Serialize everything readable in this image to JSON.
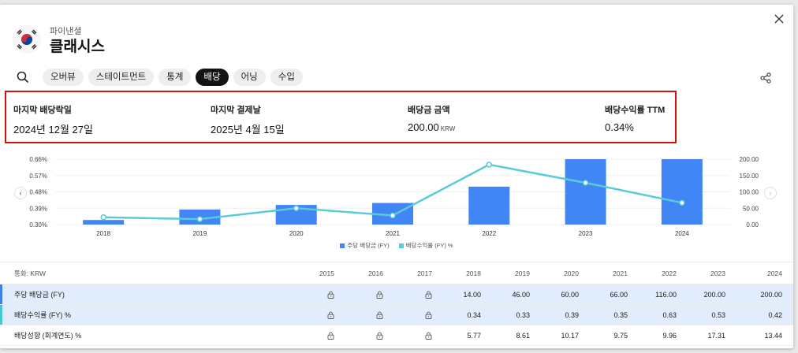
{
  "header": {
    "subtitle": "파이낸셜",
    "title": "클래시스"
  },
  "tabs": [
    "오버뷰",
    "스테이트먼트",
    "통계",
    "배당",
    "어닝",
    "수입"
  ],
  "active_tab": "배당",
  "stats": [
    {
      "label": "마지막 배당락일",
      "value": "2024년 12월 27일",
      "unit": ""
    },
    {
      "label": "마지막 결제날",
      "value": "2025년 4월 15일",
      "unit": ""
    },
    {
      "label": "배당금 금액",
      "value": "200.00",
      "unit": "KRW"
    },
    {
      "label": "배당수익률 TTM",
      "value": "0.34%",
      "unit": ""
    }
  ],
  "chart_data": {
    "type": "bar",
    "categories": [
      "2018",
      "2019",
      "2020",
      "2021",
      "2022",
      "2023",
      "2024"
    ],
    "series": [
      {
        "name": "주당 배당금 (FY)",
        "type": "bar",
        "axis": "right",
        "values": [
          14.0,
          46.0,
          60.0,
          66.0,
          116.0,
          200.0,
          200.0
        ],
        "color": "#4285f4"
      },
      {
        "name": "배당수익률 (FY) %",
        "type": "line",
        "axis": "left",
        "values": [
          0.34,
          0.33,
          0.39,
          0.35,
          0.63,
          0.53,
          0.42
        ],
        "color": "#5bcad8"
      }
    ],
    "left_axis": {
      "ticks": [
        "0.66%",
        "0.57%",
        "0.48%",
        "0.39%",
        "0.30%"
      ],
      "range": [
        0.3,
        0.66
      ]
    },
    "right_axis": {
      "ticks": [
        "200.00",
        "150.00",
        "100.00",
        "50.00",
        "0.00"
      ],
      "range": [
        0,
        200
      ]
    },
    "grid": true,
    "legend": "bottom"
  },
  "table": {
    "currency_label": "통화: KRW",
    "years": [
      "2015",
      "2016",
      "2017",
      "2018",
      "2019",
      "2020",
      "2021",
      "2022",
      "2023",
      "2024"
    ],
    "rows": [
      {
        "label": "주당 배당금 (FY)",
        "values": [
          "",
          "",
          "",
          "14.00",
          "46.00",
          "60.00",
          "66.00",
          "116.00",
          "200.00",
          "200.00"
        ]
      },
      {
        "label": "배당수익률 (FY) %",
        "values": [
          "",
          "",
          "",
          "0.34",
          "0.33",
          "0.39",
          "0.35",
          "0.63",
          "0.53",
          "0.42"
        ]
      },
      {
        "label": "배당성향 (회계연도) %",
        "values": [
          "",
          "",
          "",
          "5.77",
          "8.61",
          "10.17",
          "9.75",
          "9.96",
          "17.31",
          "13.44"
        ]
      }
    ]
  },
  "icons": {
    "search": "search-icon",
    "close": "close-icon",
    "share": "share-icon",
    "lock": "lock-icon",
    "flag": "korea-flag-icon"
  },
  "colors": {
    "bar": "#4285f4",
    "line": "#5bcad8",
    "highlight_box": "#d11010",
    "row_highlight": "#e1edfc"
  }
}
